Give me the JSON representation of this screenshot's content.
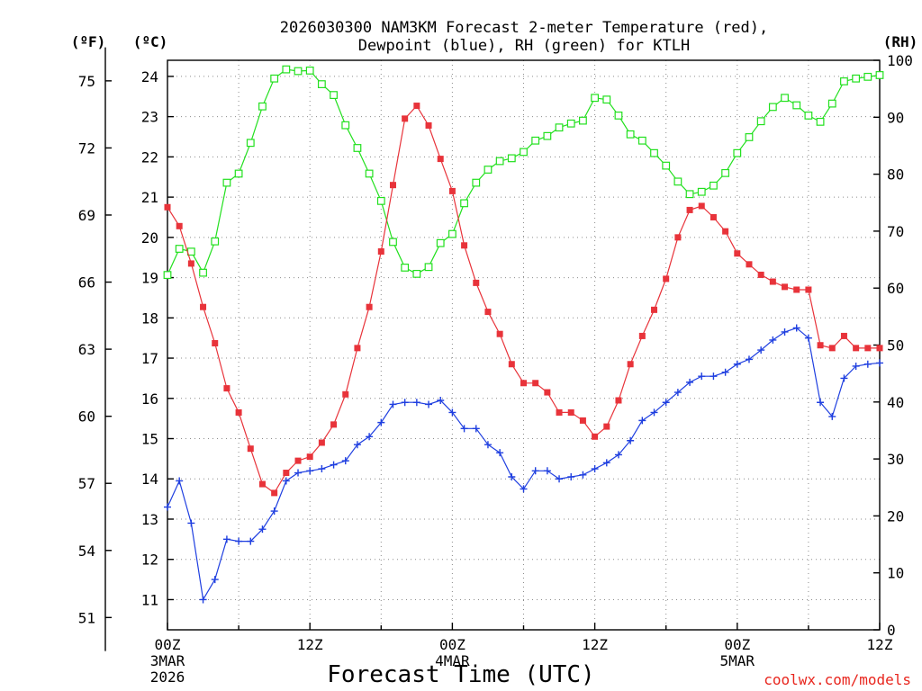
{
  "chart_data": {
    "type": "line",
    "title_line1": "2026030300 NAM3KM Forecast 2-meter Temperature (red),",
    "title_line2": "Dewpoint (blue), RH (green) for KTLH",
    "xlabel": "Forecast Time (UTC)",
    "credit": "coolwx.com/models",
    "units": {
      "fahrenheit": "(ºF)",
      "celsius": "(ºC)",
      "rh": "(RH)"
    },
    "x_range": [
      0,
      60
    ],
    "x_ticks": [
      {
        "hour": 0,
        "label": "00Z",
        "date": "3MAR",
        "year": "2026"
      },
      {
        "hour": 12,
        "label": "12Z"
      },
      {
        "hour": 24,
        "label": "00Z",
        "date": "4MAR"
      },
      {
        "hour": 36,
        "label": "12Z"
      },
      {
        "hour": 48,
        "label": "00Z",
        "date": "5MAR"
      },
      {
        "hour": 60,
        "label": "12Z"
      }
    ],
    "celsius_range": [
      10.25,
      24.4
    ],
    "celsius_ticks": [
      "11",
      "12",
      "13",
      "14",
      "15",
      "16",
      "17",
      "18",
      "19",
      "20",
      "21",
      "22",
      "23",
      "24"
    ],
    "fahrenheit_ticks": [
      "51",
      "54",
      "57",
      "60",
      "63",
      "66",
      "69",
      "72",
      "75"
    ],
    "rh_range": [
      0,
      100
    ],
    "rh_ticks": [
      "0",
      "10",
      "20",
      "30",
      "40",
      "50",
      "60",
      "70",
      "80",
      "90",
      "100"
    ],
    "colors": {
      "temperature": "#e8333a",
      "dewpoint": "#1f3fe0",
      "rh": "#22e01e",
      "credit": "#e8261e"
    },
    "series": [
      {
        "name": "Temperature",
        "units": "C",
        "x": [
          0,
          1,
          2,
          3,
          4,
          5,
          6,
          7,
          8,
          9,
          10,
          11,
          12,
          13,
          14,
          15,
          16,
          17,
          18,
          19,
          20,
          21,
          22,
          23,
          24,
          25,
          26,
          27,
          28,
          29,
          30,
          31,
          32,
          33,
          34,
          35,
          36,
          37,
          38,
          39,
          40,
          41,
          42,
          43,
          44,
          45,
          46,
          47,
          48,
          49,
          50,
          51,
          52,
          53,
          54,
          55,
          56,
          57,
          58,
          59,
          60
        ],
        "values": [
          20.75,
          20.28,
          19.35,
          18.27,
          17.37,
          16.25,
          15.65,
          14.75,
          13.87,
          13.65,
          14.15,
          14.45,
          14.55,
          14.9,
          15.35,
          16.1,
          17.25,
          18.27,
          19.65,
          21.3,
          22.95,
          23.27,
          22.78,
          21.95,
          21.15,
          19.8,
          18.87,
          18.15,
          17.6,
          16.85,
          16.38,
          16.38,
          16.15,
          15.65,
          15.65,
          15.45,
          15.05,
          15.3,
          15.95,
          16.85,
          17.55,
          18.2,
          18.97,
          20.0,
          20.68,
          20.78,
          20.5,
          20.15,
          19.6,
          19.33,
          19.07,
          18.9,
          18.77,
          18.7,
          18.7,
          17.32,
          17.25,
          17.55,
          17.25,
          17.25,
          17.25
        ]
      },
      {
        "name": "Dewpoint",
        "units": "C",
        "x": [
          0,
          1,
          2,
          3,
          4,
          5,
          6,
          7,
          8,
          9,
          10,
          11,
          12,
          13,
          14,
          15,
          16,
          17,
          18,
          19,
          20,
          21,
          22,
          23,
          24,
          25,
          26,
          27,
          28,
          29,
          30,
          31,
          32,
          33,
          34,
          35,
          36,
          37,
          38,
          39,
          40,
          41,
          42,
          43,
          44,
          45,
          46,
          47,
          48,
          49,
          50,
          51,
          52,
          53,
          54,
          55,
          56,
          57,
          58,
          59,
          60
        ],
        "values": [
          13.3,
          13.95,
          12.9,
          11.0,
          11.5,
          12.5,
          12.45,
          12.45,
          12.75,
          13.2,
          13.95,
          14.15,
          14.2,
          14.25,
          14.35,
          14.45,
          14.85,
          15.05,
          15.4,
          15.85,
          15.9,
          15.9,
          15.85,
          15.95,
          15.65,
          15.25,
          15.25,
          14.85,
          14.65,
          14.05,
          13.75,
          14.2,
          14.2,
          14.0,
          14.05,
          14.1,
          14.25,
          14.4,
          14.6,
          14.95,
          15.45,
          15.65,
          15.9,
          16.15,
          16.4,
          16.55,
          16.55,
          16.65,
          16.85,
          16.97,
          17.2,
          17.45,
          17.65,
          17.75,
          17.5,
          15.9,
          15.55,
          16.5,
          16.8,
          16.85,
          16.88
        ]
      },
      {
        "name": "RH",
        "units": "%",
        "x": [
          0,
          1,
          2,
          3,
          4,
          5,
          6,
          7,
          8,
          9,
          10,
          11,
          12,
          13,
          14,
          15,
          16,
          17,
          18,
          19,
          20,
          21,
          22,
          23,
          24,
          25,
          26,
          27,
          28,
          29,
          30,
          31,
          32,
          33,
          34,
          35,
          36,
          37,
          38,
          39,
          40,
          41,
          42,
          43,
          44,
          45,
          46,
          47,
          48,
          49,
          50,
          51,
          52,
          53,
          54,
          55,
          56,
          57,
          58,
          59,
          60
        ],
        "values": [
          62.3,
          66.9,
          66.4,
          62.7,
          68.2,
          78.5,
          80.1,
          85.5,
          91.9,
          96.8,
          98.4,
          98.1,
          98.2,
          95.8,
          93.9,
          88.6,
          84.6,
          80.1,
          75.3,
          68.1,
          63.6,
          62.5,
          63.7,
          67.9,
          69.5,
          74.9,
          78.5,
          80.8,
          82.3,
          82.8,
          83.9,
          85.9,
          86.7,
          88.2,
          88.9,
          89.4,
          93.4,
          93.1,
          90.3,
          87.0,
          85.9,
          83.7,
          81.5,
          78.7,
          76.5,
          76.9,
          78.0,
          80.2,
          83.7,
          86.5,
          89.3,
          91.8,
          93.4,
          92.1,
          90.3,
          89.2,
          92.4,
          96.3,
          96.8,
          97.1,
          97.4
        ]
      }
    ]
  }
}
